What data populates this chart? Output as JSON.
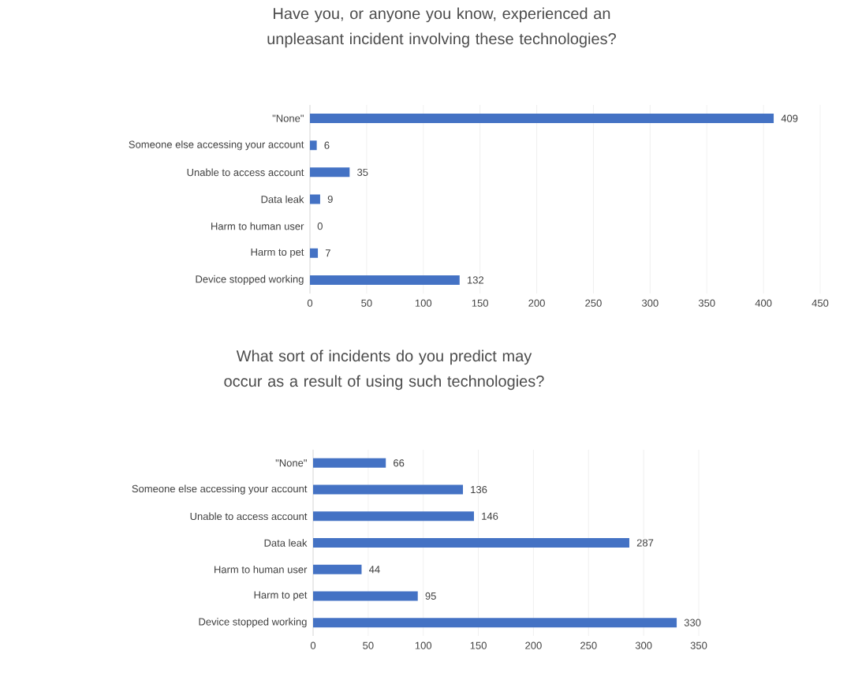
{
  "chart_data": [
    {
      "type": "bar",
      "orientation": "horizontal",
      "title": "Have you, or anyone you know, experienced an unpleasant incident involving these technologies?",
      "categories": [
        "\"None\"",
        "Someone else accessing your account",
        "Unable to access account",
        "Data leak",
        "Harm to human user",
        "Harm to pet",
        "Device stopped working"
      ],
      "values": [
        409,
        6,
        35,
        9,
        0,
        7,
        132
      ],
      "color": "#4472c4",
      "xlim": [
        0,
        450
      ],
      "xticks": [
        0,
        50,
        100,
        150,
        200,
        250,
        300,
        350,
        400,
        450
      ],
      "grid": "x",
      "data_labels": true
    },
    {
      "type": "bar",
      "orientation": "horizontal",
      "title": "What sort of incidents do you predict may occur as a result of using such technologies?",
      "categories": [
        "\"None\"",
        "Someone else accessing your account",
        "Unable to access account",
        "Data leak",
        "Harm to human user",
        "Harm to pet",
        "Device stopped working"
      ],
      "values": [
        66,
        136,
        146,
        287,
        44,
        95,
        330
      ],
      "color": "#4472c4",
      "xlim": [
        0,
        350
      ],
      "xticks": [
        0,
        50,
        100,
        150,
        200,
        250,
        300,
        350
      ],
      "grid": "x",
      "data_labels": true
    }
  ]
}
